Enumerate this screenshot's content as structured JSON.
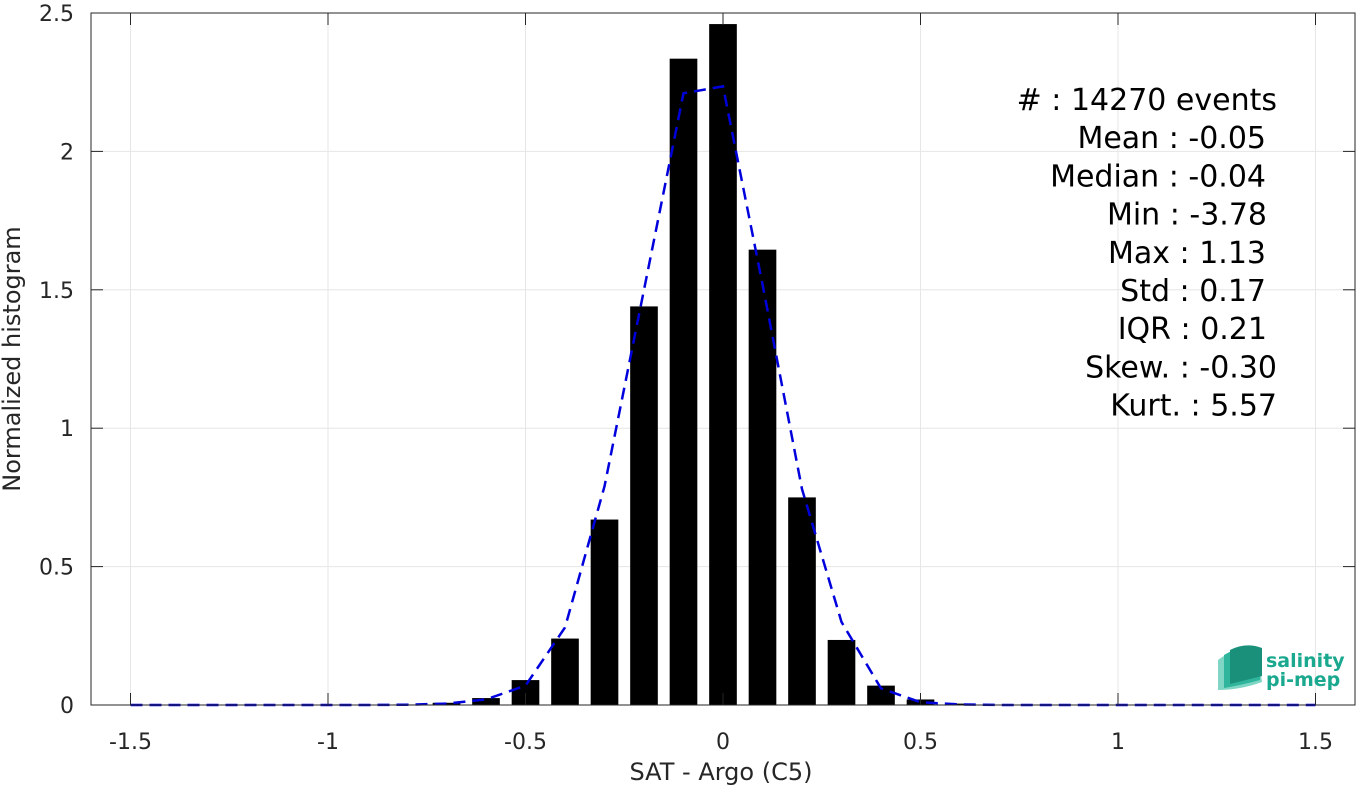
{
  "chart_data": {
    "type": "bar",
    "xlabel": "SAT - Argo (C5)",
    "ylabel": "Normalized histogram",
    "xlim": [
      -1.6,
      1.6
    ],
    "ylim": [
      0,
      2.5
    ],
    "xticks": [
      -1.5,
      -1,
      -0.5,
      0,
      0.5,
      1,
      1.5
    ],
    "xtick_labels": [
      "-1.5",
      "-1",
      "-0.5",
      "0",
      "0.5",
      "1",
      "1.5"
    ],
    "yticks": [
      0,
      0.5,
      1,
      1.5,
      2,
      2.5
    ],
    "ytick_labels": [
      "0",
      "0.5",
      "1",
      "1.5",
      "2",
      "2.5"
    ],
    "grid": true,
    "bar_width": 0.07,
    "bars": {
      "x": [
        -1.5,
        -1.4,
        -1.3,
        -1.2,
        -1.1,
        -1.0,
        -0.9,
        -0.8,
        -0.7,
        -0.6,
        -0.5,
        -0.4,
        -0.3,
        -0.2,
        -0.1,
        0.0,
        0.1,
        0.2,
        0.3,
        0.4,
        0.5,
        0.6,
        0.7
      ],
      "values": [
        0.001,
        0.001,
        0.001,
        0.001,
        0.001,
        0.001,
        0.001,
        0.002,
        0.008,
        0.025,
        0.09,
        0.24,
        0.67,
        1.44,
        2.335,
        2.46,
        1.645,
        0.75,
        0.235,
        0.07,
        0.02,
        0.005,
        0.001
      ],
      "color": "#000000"
    },
    "fit": {
      "style": "dashed",
      "color": "#0000dd",
      "x": [
        -1.5,
        -1.4,
        -1.3,
        -1.2,
        -1.1,
        -1.0,
        -0.9,
        -0.8,
        -0.7,
        -0.6,
        -0.5,
        -0.4,
        -0.3,
        -0.2,
        -0.1,
        0.0,
        0.1,
        0.2,
        0.3,
        0.4,
        0.5,
        0.6,
        0.7,
        0.8,
        0.9,
        1.0,
        1.1,
        1.2,
        1.3,
        1.4,
        1.5
      ],
      "values": [
        0,
        0,
        0,
        0,
        0,
        0,
        0,
        0.001,
        0.005,
        0.02,
        0.07,
        0.28,
        0.79,
        1.5,
        2.21,
        2.235,
        1.52,
        0.78,
        0.3,
        0.06,
        0.01,
        0.002,
        0,
        0,
        0,
        0,
        0,
        0,
        0,
        0,
        0
      ]
    },
    "annotations": [
      "#  : 14270 events",
      "Mean : -0.05",
      "Median : -0.04",
      "Min : -3.78",
      "Max : 1.13",
      "Std : 0.17",
      "IQR : 0.21",
      "Skew. : -0.30",
      "Kurt. : 5.57"
    ]
  },
  "logo": {
    "line1": "salinity",
    "line2": "pi-mep",
    "color": "#1aa88f"
  }
}
